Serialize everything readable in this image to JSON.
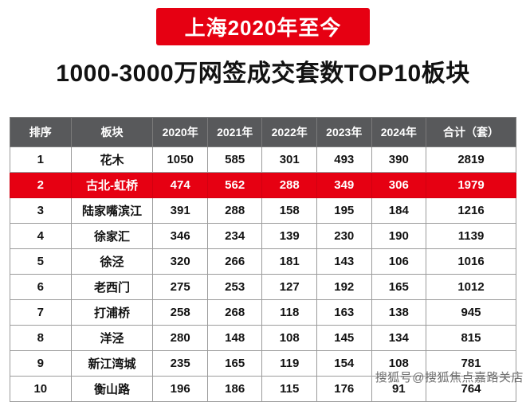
{
  "banner": {
    "text": "上海2020年至今"
  },
  "title": "1000-3000万网签成交套数TOP10板块",
  "chart_data": {
    "type": "table",
    "title": "1000-3000万网签成交套数TOP10板块",
    "subtitle": "上海2020年至今",
    "columns": [
      "排序",
      "板块",
      "2020年",
      "2021年",
      "2022年",
      "2023年",
      "2024年",
      "合计（套）"
    ],
    "rows": [
      {
        "rank": "1",
        "name": "花木",
        "values": [
          1050,
          585,
          301,
          493,
          390,
          2819
        ],
        "highlight": false
      },
      {
        "rank": "2",
        "name": "古北-虹桥",
        "values": [
          474,
          562,
          288,
          349,
          306,
          1979
        ],
        "highlight": true
      },
      {
        "rank": "3",
        "name": "陆家嘴滨江",
        "values": [
          391,
          288,
          158,
          195,
          184,
          1216
        ],
        "highlight": false
      },
      {
        "rank": "4",
        "name": "徐家汇",
        "values": [
          346,
          234,
          139,
          230,
          190,
          1139
        ],
        "highlight": false
      },
      {
        "rank": "5",
        "name": "徐泾",
        "values": [
          320,
          266,
          181,
          143,
          106,
          1016
        ],
        "highlight": false
      },
      {
        "rank": "6",
        "name": "老西门",
        "values": [
          275,
          253,
          127,
          192,
          165,
          1012
        ],
        "highlight": false
      },
      {
        "rank": "7",
        "name": "打浦桥",
        "values": [
          258,
          268,
          118,
          163,
          138,
          945
        ],
        "highlight": false
      },
      {
        "rank": "8",
        "name": "洋泾",
        "values": [
          280,
          148,
          108,
          145,
          134,
          815
        ],
        "highlight": false
      },
      {
        "rank": "9",
        "name": "新江湾城",
        "values": [
          235,
          165,
          119,
          154,
          108,
          781
        ],
        "highlight": false
      },
      {
        "rank": "10",
        "name": "衡山路",
        "values": [
          196,
          186,
          115,
          176,
          91,
          764
        ],
        "highlight": false
      }
    ]
  },
  "watermark": {
    "text": "搜狐号@搜狐焦点嘉路关店"
  },
  "colors": {
    "accent_red": "#e60012",
    "header_bg": "#58595b",
    "body_text": "#121212"
  }
}
